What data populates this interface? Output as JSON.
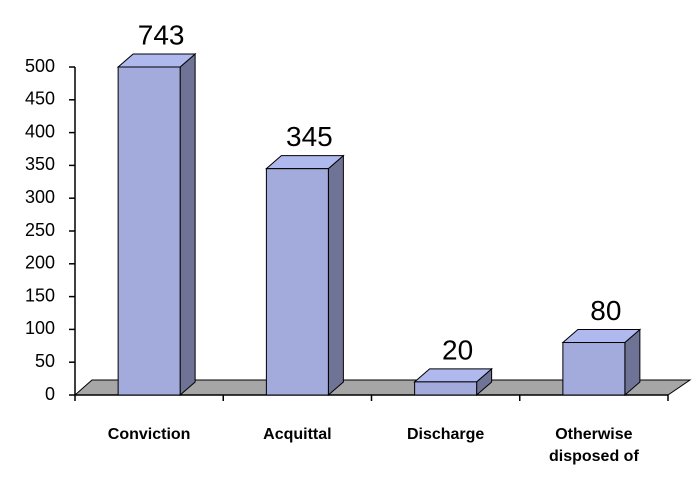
{
  "chart_data": {
    "type": "bar3d",
    "categories": [
      "Conviction",
      "Acquittal",
      "Discharge",
      "Otherwise disposed of"
    ],
    "values": [
      743,
      345,
      20,
      80
    ],
    "color": "#a3abdc",
    "ylim": [
      0,
      500
    ],
    "yticks": [
      0,
      50,
      100,
      150,
      200,
      250,
      300,
      350,
      400,
      450,
      500
    ]
  }
}
